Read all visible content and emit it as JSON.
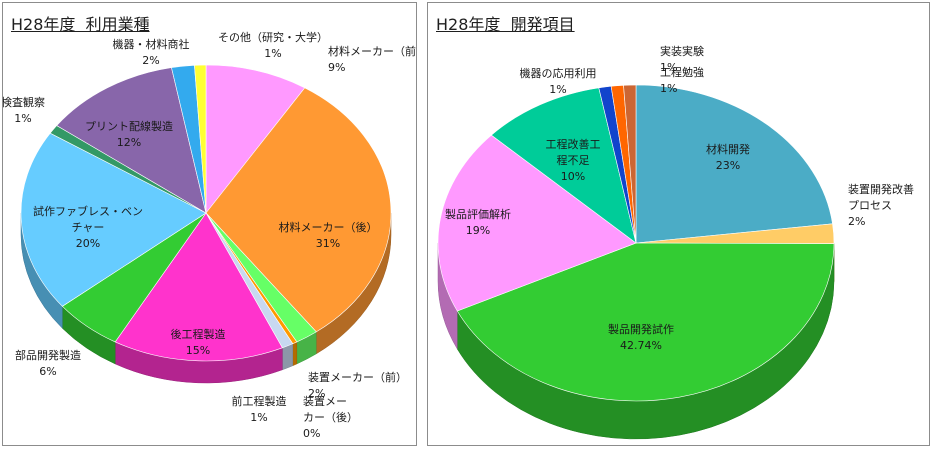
{
  "chart_data": [
    {
      "type": "pie",
      "title": "H28年度  利用業種",
      "slices": [
        {
          "name": "材料メーカー（前）",
          "value": 9,
          "label": "9%",
          "color": "#ff99ff"
        },
        {
          "name": "材料メーカー（後）",
          "value": 31,
          "label": "31%",
          "color": "#ff9933"
        },
        {
          "name": "装置メーカー（前）",
          "value": 2,
          "label": "2%",
          "color": "#66ff66"
        },
        {
          "name": "装置メー\nカー（後）",
          "value": 0.4,
          "label": "0%",
          "color": "#ff9900"
        },
        {
          "name": "前工程製造",
          "value": 1,
          "label": "1%",
          "color": "#c8d8f0"
        },
        {
          "name": "後工程製造",
          "value": 15,
          "label": "15%",
          "color": "#ff33cc"
        },
        {
          "name": "部品開発製造",
          "value": 6,
          "label": "6%",
          "color": "#33cc33"
        },
        {
          "name": "試作ファブレス・ベン\nチャー",
          "value": 20,
          "label": "20%",
          "color": "#66ccff"
        },
        {
          "name": "検査観察",
          "value": 1,
          "label": "1%",
          "color": "#339966"
        },
        {
          "name": "プリント配線製造",
          "value": 12,
          "label": "12%",
          "color": "#8866aa"
        },
        {
          "name": "機器・材料商社",
          "value": 2,
          "label": "2%",
          "color": "#33aaee"
        },
        {
          "name": "その他（研究・大学）",
          "value": 1,
          "label": "1%",
          "color": "#ffff33"
        }
      ]
    },
    {
      "type": "pie",
      "title": "H28年度  開発項目",
      "slices": [
        {
          "name": "材料開発",
          "value": 23,
          "label": "23%",
          "color": "#4bacc6"
        },
        {
          "name": "装置開発改善\nプロセス",
          "value": 2,
          "label": "2%",
          "color": "#ffcc66"
        },
        {
          "name": "製品開発試作",
          "value": 42.74,
          "label": "42.74%",
          "color": "#33cc33"
        },
        {
          "name": "製品評価解析",
          "value": 19,
          "label": "19%",
          "color": "#ff99ff"
        },
        {
          "name": "工程改善工\n程不足",
          "value": 10,
          "label": "10%",
          "color": "#00cc99"
        },
        {
          "name": "機器の応用利用",
          "value": 1,
          "label": "1%",
          "color": "#1144cc"
        },
        {
          "name": "実装実験",
          "value": 1,
          "label": "1%",
          "color": "#ff6600"
        },
        {
          "name": "工程勉強",
          "value": 1,
          "label": "1%",
          "color": "#cc6633"
        }
      ]
    }
  ]
}
